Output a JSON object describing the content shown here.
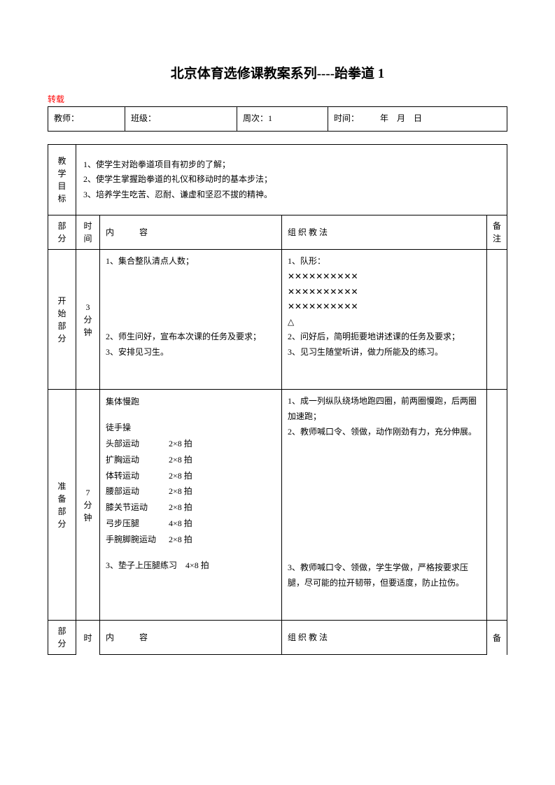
{
  "title": "北京体育选修课教案系列----跆拳道 1",
  "note": "转载",
  "info": {
    "teacher_label": "教师：",
    "class_label": "班级：",
    "week_label": "周次：",
    "week_value": "1",
    "time_label": "时间：",
    "date_blank": "年　月　日"
  },
  "goal_label": "教学目标",
  "goals": "1、使学生对跆拳道项目有初步的了解；\n2、使学生掌握跆拳道的礼仪和移动时的基本步法；\n3、培养学生吃苦、忍耐、谦虚和坚忍不拔的精神。",
  "columns": {
    "part": "部分",
    "time": "时间",
    "content_label": "内　　　容",
    "method_label": "组 织 教 法",
    "remark": "备注"
  },
  "rows": [
    {
      "part": "开 始部 分",
      "time": "3 分钟",
      "content": "1、集合整队清点人数；\n\n\n\n\n2、师生问好，宣布本次课的任务及要求；\n3、安排见习生。",
      "method": "1、队形：\n✕✕✕✕✕✕✕✕✕✕\n✕✕✕✕✕✕✕✕✕✕\n✕✕✕✕✕✕✕✕✕✕\n△\n2、问好后，简明扼要地讲述课的任务及要求；\n3、见习生随堂听讲，做力所能及的练习。",
      "remark": ""
    },
    {
      "part": "准 备部 分",
      "time": "7 分钟",
      "content_block": {
        "line1": "集体慢跑",
        "line2": "徒手操",
        "exercises": [
          {
            "name": "头部运动",
            "count": "2×8 拍"
          },
          {
            "name": "扩胸运动",
            "count": "2×8 拍"
          },
          {
            "name": "体转运动",
            "count": "2×8 拍"
          },
          {
            "name": "腰部运动",
            "count": "2×8 拍"
          },
          {
            "name": "膝关节运动",
            "count": "2×8 拍"
          },
          {
            "name": "弓步压腿",
            "count": "4×8 拍"
          },
          {
            "name": "手腕脚腕运动",
            "count": "2×8 拍"
          }
        ],
        "line3": "3、垫子上压腿练习　4×8 拍"
      },
      "method": "1、成一列纵队绕场地跑四圈，前两圈慢跑，后两圈加速跑；\n2、教师喊口令、领做，动作刚劲有力，充分伸展。\n\n\n\n\n\n\n\n\n3、教师喊口令、领做，学生学做，严格按要求压腿，尽可能的拉开韧带，但要适度，防止拉伤。",
      "remark": ""
    }
  ],
  "footer_row": {
    "part": "部分",
    "time": "时",
    "content": "内　　　容",
    "method": "组 织 教 法",
    "remark": "备"
  }
}
